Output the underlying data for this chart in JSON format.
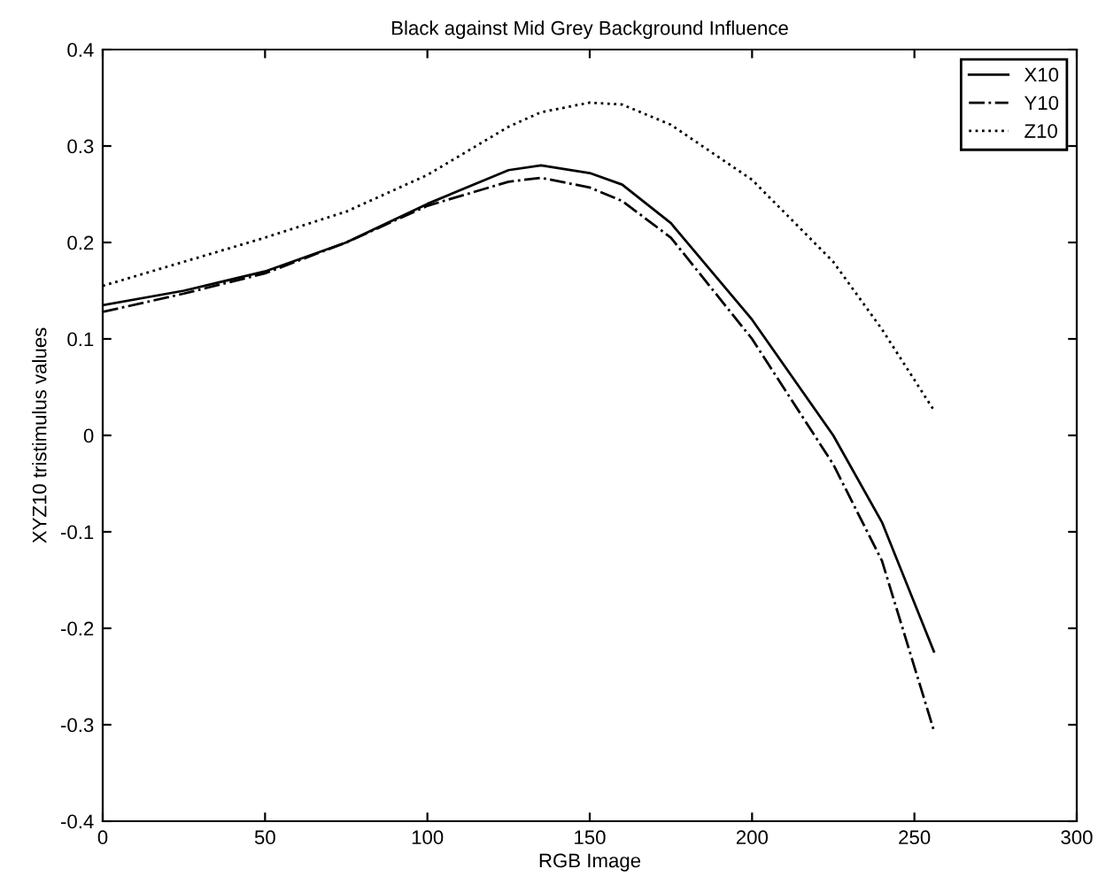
{
  "chart_data": {
    "type": "line",
    "title": "Black against Mid Grey Background Influence",
    "xlabel": "RGB Image",
    "ylabel": "XYZ10 tristimulus values",
    "x": [
      0,
      25,
      50,
      75,
      100,
      125,
      135,
      150,
      160,
      175,
      200,
      225,
      240,
      256
    ],
    "series": [
      {
        "name": "X10",
        "color": "#000000",
        "line_style": "solid",
        "values": [
          0.135,
          0.15,
          0.17,
          0.2,
          0.24,
          0.275,
          0.28,
          0.272,
          0.26,
          0.22,
          0.12,
          0.0,
          -0.09,
          -0.224
        ]
      },
      {
        "name": "Y10",
        "color": "#000000",
        "line_style": "dashdot",
        "values": [
          0.128,
          0.147,
          0.168,
          0.2,
          0.238,
          0.263,
          0.267,
          0.257,
          0.243,
          0.205,
          0.1,
          -0.03,
          -0.13,
          -0.306
        ]
      },
      {
        "name": "Z10",
        "color": "#000000",
        "line_style": "dotted",
        "values": [
          0.155,
          0.18,
          0.205,
          0.232,
          0.27,
          0.32,
          0.335,
          0.345,
          0.343,
          0.322,
          0.265,
          0.18,
          0.11,
          0.026
        ]
      }
    ],
    "xlim": [
      0,
      300
    ],
    "xticks": [
      0,
      50,
      100,
      150,
      200,
      250,
      300
    ],
    "ylim": [
      -0.4,
      0.4
    ],
    "yticks": [
      -0.4,
      -0.3,
      -0.2,
      -0.1,
      0,
      0.1,
      0.2,
      0.3,
      0.4
    ],
    "grid": false,
    "legend": "top right"
  }
}
